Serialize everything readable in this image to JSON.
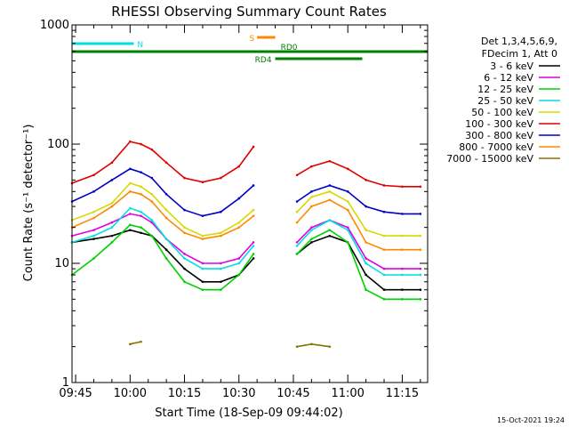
{
  "chart_data": {
    "type": "line",
    "title": "RHESSI Observing Summary Count Rates",
    "xlabel": "Start Time (18-Sep-09 09:44:02)",
    "ylabel": "Count Rate (s⁻¹ detector⁻¹)",
    "ylog": true,
    "xlim": [
      "09:44",
      "11:22"
    ],
    "ylim": [
      1,
      1000
    ],
    "x_ticks": [
      "09:45",
      "10:00",
      "10:15",
      "10:30",
      "10:45",
      "11:00",
      "11:15"
    ],
    "y_ticks": [
      "1",
      "10",
      "100",
      "1000"
    ],
    "legend_header": [
      "Det 1,3,4,5,6,9,",
      "FDecim 1, Att 0"
    ],
    "legend_position": "right",
    "timestamp": "15-Oct-2021 19:24",
    "gap": [
      "10:34",
      "10:46"
    ],
    "x": [
      "09:44",
      "09:50",
      "09:55",
      "10:00",
      "10:03",
      "10:06",
      "10:10",
      "10:15",
      "10:20",
      "10:25",
      "10:30",
      "10:34",
      "10:46",
      "10:50",
      "10:55",
      "11:00",
      "11:05",
      "11:10",
      "11:15",
      "11:20"
    ],
    "series": [
      {
        "name": "3 - 6 keV",
        "color": "#000000",
        "values": [
          15,
          16,
          17,
          19,
          18,
          17,
          13,
          9,
          7,
          7,
          8,
          11,
          12,
          15,
          17,
          15,
          8,
          6,
          6,
          6
        ]
      },
      {
        "name": "6 - 12 keV",
        "color": "#e000e0",
        "values": [
          17,
          19,
          22,
          26,
          25,
          22,
          16,
          12,
          10,
          10,
          11,
          15,
          15,
          20,
          23,
          20,
          11,
          9,
          9,
          9
        ]
      },
      {
        "name": "12 - 25 keV",
        "color": "#00d000",
        "values": [
          8,
          11,
          15,
          21,
          20,
          17,
          11,
          7,
          6,
          6,
          8,
          12,
          12,
          16,
          19,
          15,
          6,
          5,
          5,
          5
        ]
      },
      {
        "name": "25 - 50 keV",
        "color": "#00e0e0",
        "values": [
          15,
          17,
          20,
          29,
          27,
          23,
          16,
          11,
          9,
          9,
          10,
          14,
          14,
          19,
          23,
          19,
          10,
          8,
          8,
          8
        ]
      },
      {
        "name": "50 - 100 keV",
        "color": "#d8d800",
        "values": [
          23,
          27,
          32,
          47,
          44,
          38,
          28,
          20,
          17,
          18,
          22,
          28,
          27,
          36,
          40,
          33,
          19,
          17,
          17,
          17
        ]
      },
      {
        "name": "100 - 300 keV",
        "color": "#e00000",
        "values": [
          47,
          55,
          70,
          105,
          100,
          90,
          70,
          52,
          48,
          52,
          65,
          95,
          55,
          65,
          72,
          62,
          50,
          45,
          44,
          44
        ]
      },
      {
        "name": "300 - 800 keV",
        "color": "#0000c8",
        "values": [
          33,
          40,
          50,
          62,
          58,
          52,
          38,
          28,
          25,
          27,
          35,
          45,
          33,
          40,
          45,
          40,
          30,
          27,
          26,
          26
        ]
      },
      {
        "name": "800 - 7000 keV",
        "color": "#ff8800",
        "values": [
          20,
          24,
          30,
          40,
          38,
          33,
          24,
          18,
          16,
          17,
          20,
          25,
          22,
          30,
          34,
          28,
          15,
          13,
          13,
          13
        ]
      },
      {
        "name": "7000 - 15000 keV",
        "color": "#887000",
        "values": [
          null,
          null,
          null,
          2.1,
          2.2,
          null,
          null,
          null,
          null,
          null,
          null,
          null,
          2.0,
          2.1,
          2.0,
          null,
          null,
          null,
          null,
          null
        ]
      }
    ],
    "flags": [
      {
        "label": "N",
        "color": "#00e0e0",
        "start": "09:44",
        "end": "10:01"
      },
      {
        "label": "S",
        "color": "#ff8800",
        "start": "10:35",
        "end": "10:40"
      },
      {
        "label": "RD0",
        "color": "#008000",
        "start": "09:44",
        "end": "11:22"
      },
      {
        "label": "RD4",
        "color": "#008000",
        "start": "10:40",
        "end": "11:04"
      }
    ]
  }
}
